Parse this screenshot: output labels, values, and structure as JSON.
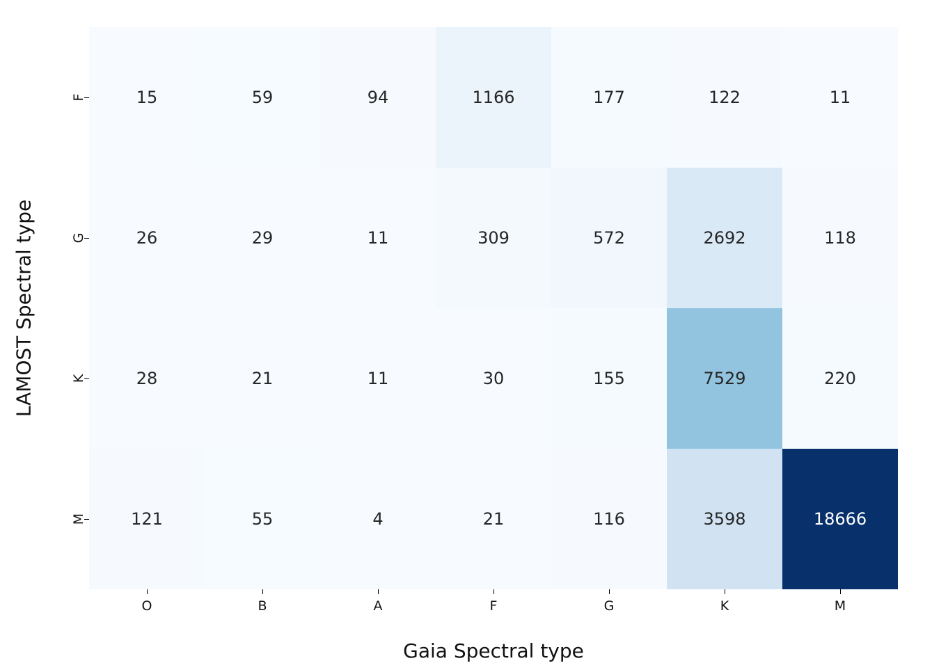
{
  "figure": {
    "background_color": "#ffffff",
    "text_color": "#111111"
  },
  "chart_data": {
    "type": "heatmap",
    "title": "",
    "xlabel": "Gaia Spectral type",
    "ylabel": "LAMOST Spectral type",
    "x_categories": [
      "O",
      "B",
      "A",
      "F",
      "G",
      "K",
      "M"
    ],
    "y_categories": [
      "F",
      "G",
      "K",
      "M"
    ],
    "values": [
      [
        15,
        59,
        94,
        1166,
        177,
        122,
        11
      ],
      [
        26,
        29,
        11,
        309,
        572,
        2692,
        118
      ],
      [
        28,
        21,
        11,
        30,
        155,
        7529,
        220
      ],
      [
        121,
        55,
        4,
        21,
        116,
        3598,
        18666
      ]
    ],
    "value_min": 4,
    "value_max": 18666,
    "colormap": "Blues",
    "colormap_stops": [
      "#f7fbff",
      "#deebf7",
      "#c6dbef",
      "#9ecae1",
      "#6baed6",
      "#4292c6",
      "#2171b5",
      "#08519c",
      "#08306b"
    ],
    "annotation_color_dark": "#262626",
    "annotation_color_light": "#ffffff",
    "grid": false,
    "legend": "none",
    "colorbar": "none"
  }
}
